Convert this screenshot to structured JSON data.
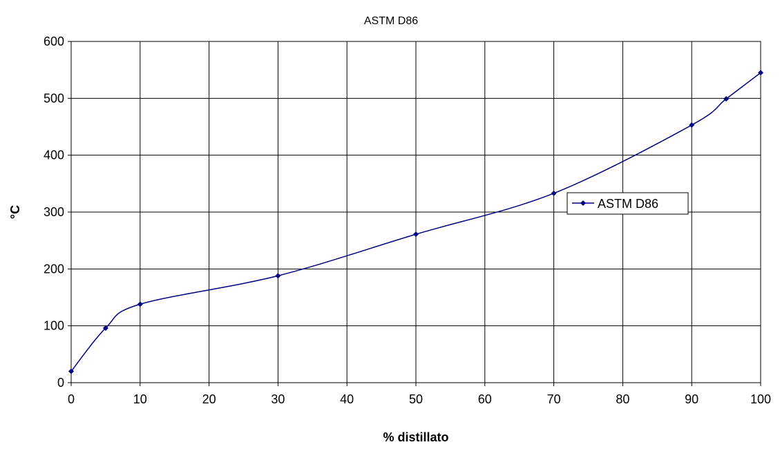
{
  "chart_data": {
    "type": "line",
    "title": "ASTM D86",
    "xlabel": "% distillato",
    "ylabel": "°C",
    "xlim": [
      0,
      100
    ],
    "ylim": [
      0,
      600
    ],
    "xticks": [
      0,
      10,
      20,
      30,
      40,
      50,
      60,
      70,
      80,
      90,
      100
    ],
    "yticks": [
      0,
      100,
      200,
      300,
      400,
      500,
      600
    ],
    "grid": true,
    "smooth": true,
    "legend_position": "right",
    "series": [
      {
        "name": "ASTM D86",
        "color": "#000080",
        "marker": "diamond",
        "x": [
          0,
          5,
          10,
          30,
          50,
          70,
          90,
          95,
          100
        ],
        "y": [
          20,
          96,
          138,
          188,
          261,
          333,
          453,
          499,
          545
        ]
      }
    ]
  }
}
